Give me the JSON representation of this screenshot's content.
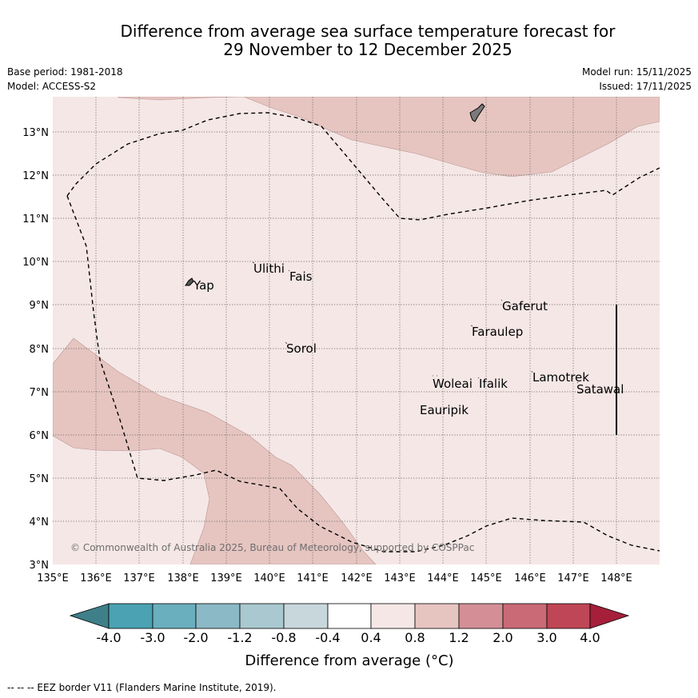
{
  "title": {
    "line1": "Difference from average sea surface temperature forecast for",
    "line2": "29 November to 12 December 2025"
  },
  "meta": {
    "base_period": "Base period: 1981-2018",
    "model": "Model: ACCESS-S2",
    "model_run": "Model run: 15/11/2025",
    "issued": "Issued: 17/11/2025"
  },
  "axes": {
    "lon_labels": [
      "135°E",
      "136°E",
      "137°E",
      "138°E",
      "139°E",
      "140°E",
      "141°E",
      "142°E",
      "143°E",
      "144°E",
      "145°E",
      "146°E",
      "147°E",
      "148°E"
    ],
    "lat_labels": [
      "3°N",
      "4°N",
      "5°N",
      "6°N",
      "7°N",
      "8°N",
      "9°N",
      "10°N",
      "11°N",
      "12°N",
      "13°N"
    ]
  },
  "places": {
    "yap": "Yap",
    "ulithi": "Ulithi",
    "fais": "Fais",
    "sorol": "Sorol",
    "gaferut": "Gaferut",
    "faraulep": "Faraulep",
    "woleai": "Woleai",
    "ifalik": "Ifalik",
    "lamotrek": "Lamotrek",
    "satawal": "Satawal",
    "eauripik": "Eauripik"
  },
  "copyright": "© Commonwealth of Australia 2025, Bureau of Meteorology, supported by COSPPac",
  "colorbar": {
    "labels": [
      "-4.0",
      "-3.0",
      "-2.0",
      "-1.2",
      "-0.8",
      "-0.4",
      "0.4",
      "0.8",
      "1.2",
      "2.0",
      "3.0",
      "4.0"
    ],
    "colors": [
      "#3f7f89",
      "#4aa2b2",
      "#6aafbd",
      "#8bb9c5",
      "#a9c8cf",
      "#c8d7dc",
      "#ffffff",
      "#f5e7e6",
      "#e6c5c1",
      "#d48f96",
      "#c96a76",
      "#bf4656",
      "#a51f3b"
    ],
    "axis_label": "Difference from average (°C)"
  },
  "footer": "-- -- -- EEZ border V11 (Flanders Marine Institute, 2019).",
  "icons": {
    "land": "island-shape",
    "eez": "dashed-border"
  }
}
